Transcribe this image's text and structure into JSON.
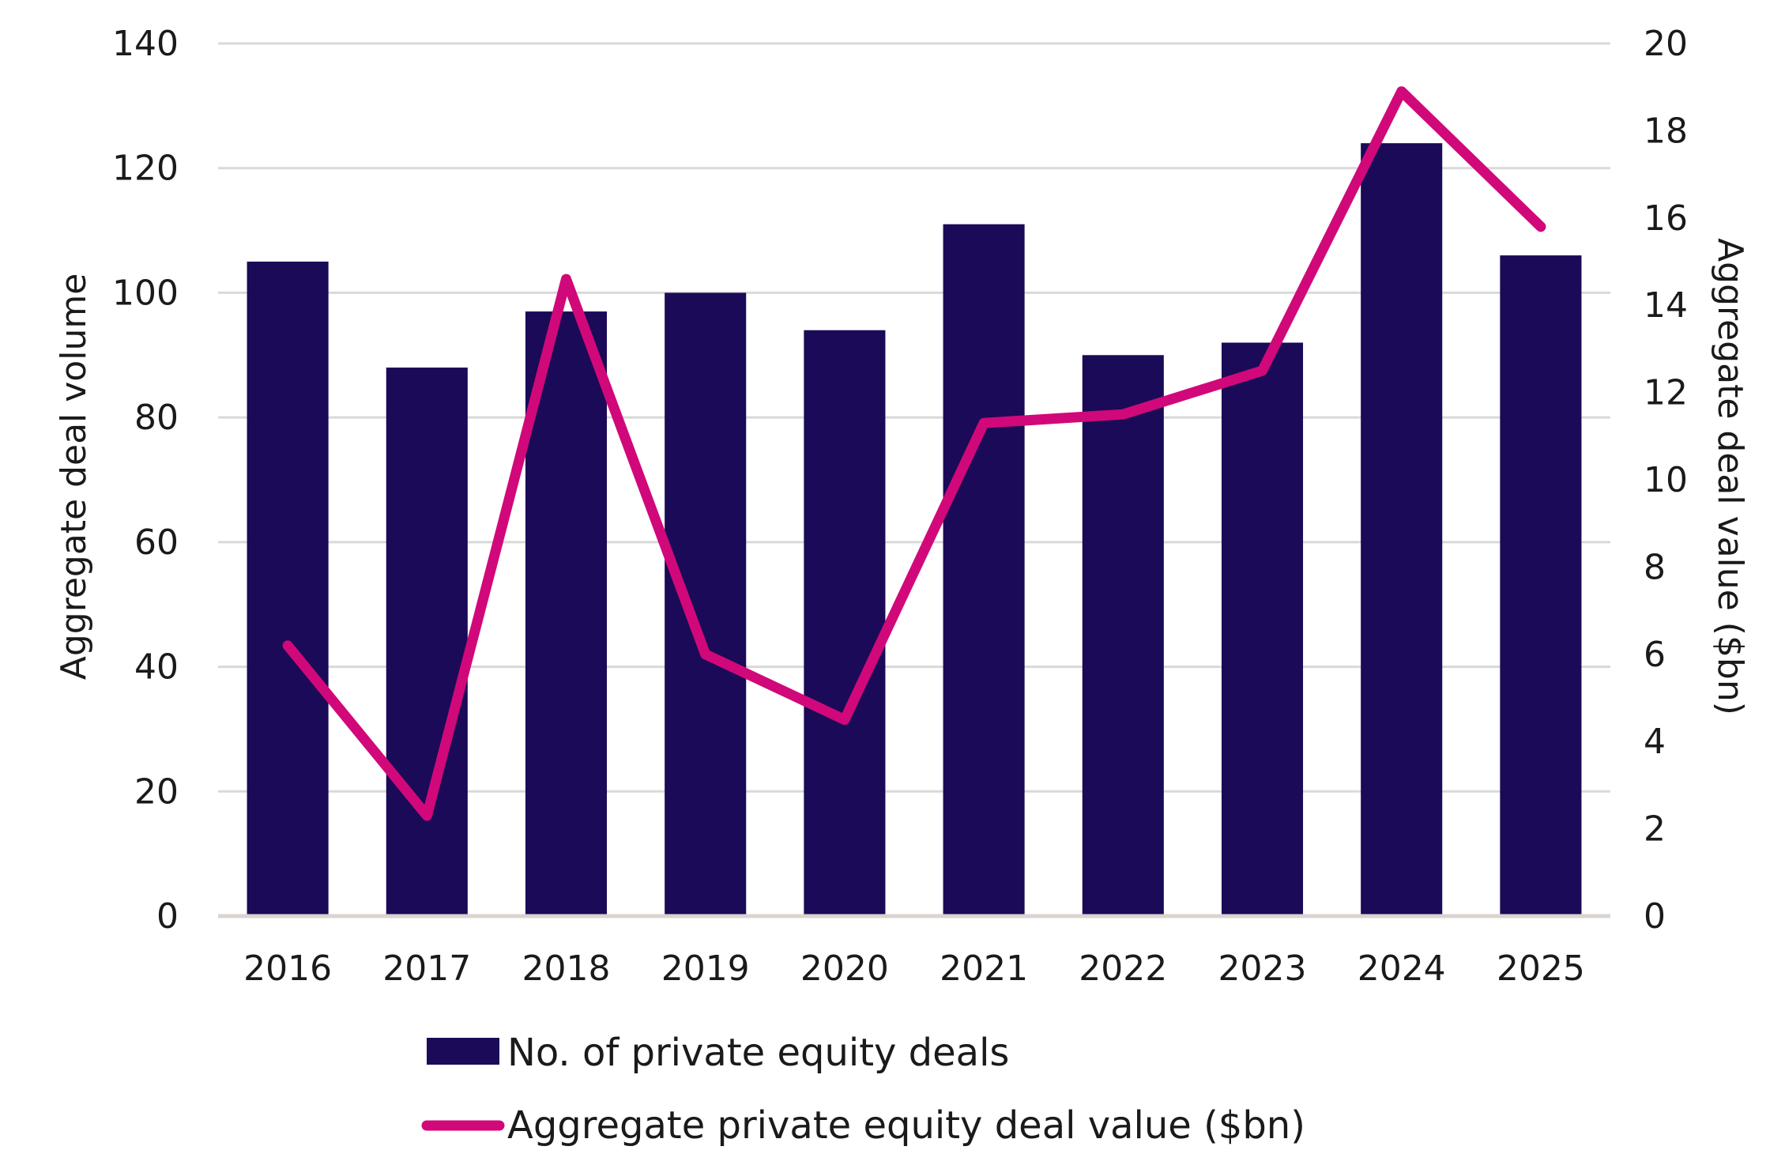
{
  "chart_data": {
    "type": "bar",
    "categories": [
      "2016",
      "2017",
      "2018",
      "2019",
      "2020",
      "2021",
      "2022",
      "2023",
      "2024",
      "2025"
    ],
    "series": [
      {
        "name": "No. of private equity deals",
        "type": "bar",
        "axis": "left",
        "values": [
          105,
          88,
          97,
          100,
          94,
          111,
          90,
          92,
          124,
          106
        ]
      },
      {
        "name": "Aggregate private equity deal value ($bn)",
        "type": "line",
        "axis": "right",
        "values": [
          6.2,
          2.3,
          14.6,
          6.0,
          4.5,
          11.3,
          11.5,
          12.5,
          18.9,
          15.8
        ]
      }
    ],
    "ylabel": "Aggregate deal volume",
    "y2label": "Aggregate deal value ($bn)",
    "ylim": [
      0,
      140
    ],
    "y2lim": [
      0,
      20
    ],
    "yticks": [
      "0",
      "20",
      "40",
      "60",
      "80",
      "100",
      "120",
      "140"
    ],
    "y2ticks": [
      "0",
      "2",
      "4",
      "6",
      "8",
      "10",
      "12",
      "14",
      "16",
      "18",
      "20"
    ],
    "grid": true,
    "legend_position": "bottom",
    "colors": {
      "bar": "#1b0a57",
      "line": "#d1087a",
      "grid": "#d9d9d9",
      "baseline": "#d9d4d0"
    }
  }
}
